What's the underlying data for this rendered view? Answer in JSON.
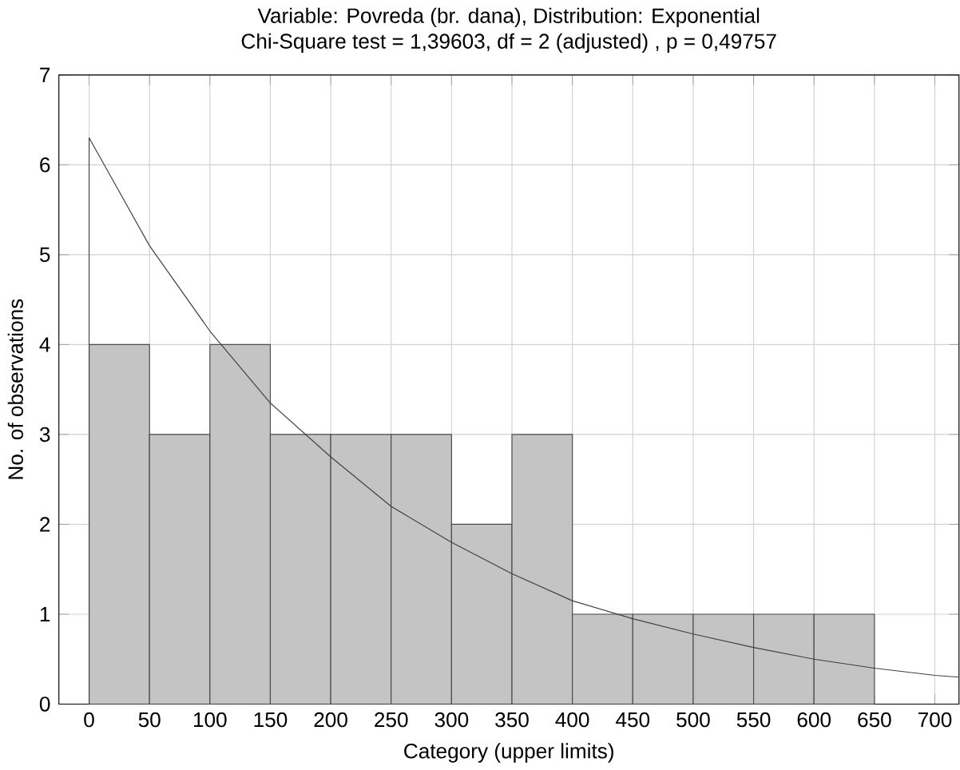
{
  "chart_data": {
    "type": "histogram",
    "title": "Variable: Povreda (br. dana), Distribution: Exponential",
    "subtitle": "Chi-Square test = 1,39603, df = 2 (adjusted) , p = 0,49757",
    "xlabel": "Category (upper limits)",
    "ylabel": "No. of observations",
    "bins": [
      0,
      50,
      100,
      150,
      200,
      250,
      300,
      350,
      400,
      450,
      500,
      550,
      600,
      650
    ],
    "values": [
      4,
      3,
      4,
      3,
      3,
      3,
      2,
      3,
      1,
      1,
      1,
      1,
      1
    ],
    "color": "#c4c4c4",
    "series": [
      {
        "type": "line",
        "color": "#404040",
        "x": [
          0,
          0,
          25,
          50,
          100,
          150,
          200,
          250,
          300,
          350,
          400,
          450,
          500,
          550,
          600,
          650,
          700,
          720
        ],
        "values": [
          0,
          6.3,
          5.7,
          5.1,
          4.15,
          3.35,
          2.75,
          2.2,
          1.8,
          1.45,
          1.15,
          0.95,
          0.78,
          0.63,
          0.5,
          0.4,
          0.32,
          0.3
        ]
      }
    ],
    "xlim": [
      -25,
      720
    ],
    "ylim": [
      0,
      7
    ],
    "xticks": [
      0,
      50,
      100,
      150,
      200,
      250,
      300,
      350,
      400,
      450,
      500,
      550,
      600,
      650,
      700
    ],
    "yticks": [
      0,
      1,
      2,
      3,
      4,
      5,
      6,
      7
    ],
    "grid": true
  }
}
